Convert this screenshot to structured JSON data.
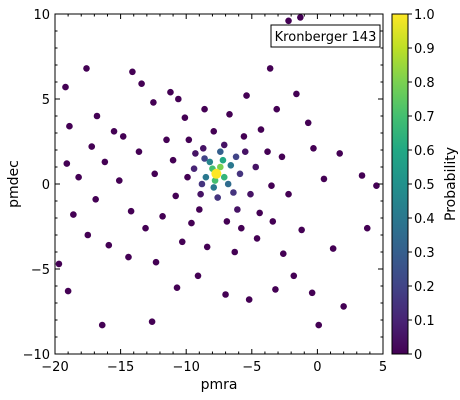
{
  "chart_data": {
    "type": "scatter",
    "title": "",
    "xlabel": "pmra",
    "ylabel": "pmdec",
    "xlim": [
      -20,
      5
    ],
    "ylim": [
      -10,
      10
    ],
    "xticks": [
      -20,
      -15,
      -10,
      -5,
      0,
      5
    ],
    "yticks": [
      -10,
      -5,
      0,
      5,
      10
    ],
    "xtick_labels": [
      "−20",
      "−15",
      "−10",
      "−5",
      "0",
      "5"
    ],
    "ytick_labels": [
      "−10",
      "−5",
      "0",
      "5",
      "10"
    ],
    "grid": false,
    "legend": {
      "label": "Kronberger 143",
      "placement": "top-right"
    },
    "colorbar": {
      "label": "Probability",
      "colormap": "viridis",
      "range": [
        0,
        1
      ],
      "ticks": [
        "0",
        "0.1",
        "0.2",
        "0.3",
        "0.4",
        "0.5",
        "0.6",
        "0.7",
        "0.8",
        "0.9",
        "1.0"
      ]
    },
    "cluster_center": {
      "x": -7.7,
      "y": 0.6,
      "probability": 1.0
    },
    "points": [
      {
        "x": -2.2,
        "y": 9.6,
        "p": 0.0
      },
      {
        "x": -1.3,
        "y": 9.8,
        "p": 0.0
      },
      {
        "x": -17.6,
        "y": 6.8,
        "p": 0.0
      },
      {
        "x": -14.1,
        "y": 6.6,
        "p": 0.0
      },
      {
        "x": -19.2,
        "y": 5.7,
        "p": 0.0
      },
      {
        "x": -13.4,
        "y": 5.9,
        "p": 0.0
      },
      {
        "x": -11.2,
        "y": 5.4,
        "p": 0.0
      },
      {
        "x": -12.5,
        "y": 4.8,
        "p": 0.0
      },
      {
        "x": -10.6,
        "y": 5.0,
        "p": 0.0
      },
      {
        "x": -16.8,
        "y": 4.0,
        "p": 0.0
      },
      {
        "x": -18.9,
        "y": 3.4,
        "p": 0.0
      },
      {
        "x": -15.5,
        "y": 3.1,
        "p": 0.0
      },
      {
        "x": -17.2,
        "y": 2.2,
        "p": 0.0
      },
      {
        "x": -19.1,
        "y": 1.2,
        "p": 0.0
      },
      {
        "x": -16.2,
        "y": 1.3,
        "p": 0.0
      },
      {
        "x": -14.8,
        "y": 2.8,
        "p": 0.0
      },
      {
        "x": -13.6,
        "y": 1.9,
        "p": 0.0
      },
      {
        "x": -18.2,
        "y": 0.4,
        "p": 0.0
      },
      {
        "x": -15.1,
        "y": 0.2,
        "p": 0.0
      },
      {
        "x": -16.9,
        "y": -0.9,
        "p": 0.0
      },
      {
        "x": -18.6,
        "y": -1.8,
        "p": 0.0
      },
      {
        "x": -17.5,
        "y": -3.0,
        "p": 0.0
      },
      {
        "x": -15.9,
        "y": -3.6,
        "p": 0.0
      },
      {
        "x": -14.2,
        "y": -1.6,
        "p": 0.0
      },
      {
        "x": -13.1,
        "y": -2.6,
        "p": 0.0
      },
      {
        "x": -14.4,
        "y": -4.3,
        "p": 0.0
      },
      {
        "x": -12.3,
        "y": -4.6,
        "p": 0.0
      },
      {
        "x": -19.7,
        "y": -4.7,
        "p": 0.0
      },
      {
        "x": -19.0,
        "y": -6.3,
        "p": 0.0
      },
      {
        "x": -16.4,
        "y": -8.3,
        "p": 0.0
      },
      {
        "x": -12.6,
        "y": -8.1,
        "p": 0.0
      },
      {
        "x": -10.7,
        "y": -6.1,
        "p": 0.0
      },
      {
        "x": -9.1,
        "y": -5.4,
        "p": 0.0
      },
      {
        "x": -7.0,
        "y": -6.5,
        "p": 0.0
      },
      {
        "x": -5.2,
        "y": -6.8,
        "p": 0.0
      },
      {
        "x": -3.2,
        "y": -6.2,
        "p": 0.0
      },
      {
        "x": -1.8,
        "y": -5.4,
        "p": 0.0
      },
      {
        "x": -0.4,
        "y": -6.4,
        "p": 0.0
      },
      {
        "x": 0.1,
        "y": -8.3,
        "p": 0.0
      },
      {
        "x": 2.0,
        "y": -7.2,
        "p": 0.0
      },
      {
        "x": 1.2,
        "y": -3.8,
        "p": 0.0
      },
      {
        "x": 3.8,
        "y": -2.6,
        "p": 0.0
      },
      {
        "x": 3.4,
        "y": 0.5,
        "p": 0.0
      },
      {
        "x": 4.5,
        "y": -0.1,
        "p": 0.0
      },
      {
        "x": 0.5,
        "y": 0.3,
        "p": 0.0
      },
      {
        "x": 1.7,
        "y": 1.8,
        "p": 0.0
      },
      {
        "x": -0.3,
        "y": 2.1,
        "p": 0.0
      },
      {
        "x": -0.7,
        "y": 3.6,
        "p": 0.0
      },
      {
        "x": -1.6,
        "y": 5.3,
        "p": 0.0
      },
      {
        "x": -3.6,
        "y": 6.8,
        "p": 0.0
      },
      {
        "x": -5.4,
        "y": 5.2,
        "p": 0.0
      },
      {
        "x": -3.1,
        "y": 4.4,
        "p": 0.0
      },
      {
        "x": -1.2,
        "y": -2.7,
        "p": 0.0
      },
      {
        "x": -2.6,
        "y": -4.1,
        "p": 0.0
      },
      {
        "x": -4.6,
        "y": -3.2,
        "p": 0.0
      },
      {
        "x": -6.3,
        "y": -4.0,
        "p": 0.0
      },
      {
        "x": -8.4,
        "y": -3.7,
        "p": 0.0
      },
      {
        "x": -10.3,
        "y": -3.4,
        "p": 0.0
      },
      {
        "x": -11.8,
        "y": -1.9,
        "p": 0.0
      },
      {
        "x": -12.4,
        "y": 0.6,
        "p": 0.0
      },
      {
        "x": -11.5,
        "y": 2.6,
        "p": 0.0
      },
      {
        "x": -10.1,
        "y": 3.9,
        "p": 0.0
      },
      {
        "x": -8.6,
        "y": 4.4,
        "p": 0.0
      },
      {
        "x": -6.7,
        "y": 4.1,
        "p": 0.0
      },
      {
        "x": -4.3,
        "y": 3.2,
        "p": 0.0
      },
      {
        "x": -2.7,
        "y": 1.6,
        "p": 0.0
      },
      {
        "x": -2.2,
        "y": -0.6,
        "p": 0.0
      },
      {
        "x": -3.4,
        "y": -2.2,
        "p": 0.0
      },
      {
        "x": -5.8,
        "y": -2.6,
        "p": 0.0
      },
      {
        "x": -9.6,
        "y": -2.3,
        "p": 0.0
      },
      {
        "x": -10.8,
        "y": -0.7,
        "p": 0.0
      },
      {
        "x": -11.0,
        "y": 1.4,
        "p": 0.0
      },
      {
        "x": -9.8,
        "y": 2.6,
        "p": 0.0
      },
      {
        "x": -7.9,
        "y": 3.1,
        "p": 0.0
      },
      {
        "x": -5.6,
        "y": 2.8,
        "p": 0.0
      },
      {
        "x": -3.8,
        "y": 1.9,
        "p": 0.0
      },
      {
        "x": -3.5,
        "y": -0.1,
        "p": 0.0
      },
      {
        "x": -4.4,
        "y": -1.7,
        "p": 0.0
      },
      {
        "x": -6.9,
        "y": -2.2,
        "p": 0.0
      },
      {
        "x": -9.0,
        "y": -1.5,
        "p": 0.0
      },
      {
        "x": -9.9,
        "y": 0.4,
        "p": 0.0
      },
      {
        "x": -9.3,
        "y": 1.8,
        "p": 0.05
      },
      {
        "x": -8.9,
        "y": -0.6,
        "p": 0.05
      },
      {
        "x": -6.1,
        "y": -1.5,
        "p": 0.05
      },
      {
        "x": -5.1,
        "y": -0.6,
        "p": 0.05
      },
      {
        "x": -4.7,
        "y": 1.0,
        "p": 0.05
      },
      {
        "x": -5.5,
        "y": 1.9,
        "p": 0.05
      },
      {
        "x": -7.1,
        "y": 2.3,
        "p": 0.05
      },
      {
        "x": -8.7,
        "y": 2.1,
        "p": 0.05
      },
      {
        "x": -9.4,
        "y": 0.9,
        "p": 0.1
      },
      {
        "x": -8.6,
        "y": 1.5,
        "p": 0.2
      },
      {
        "x": -8.8,
        "y": 0.0,
        "p": 0.15
      },
      {
        "x": -7.6,
        "y": -0.8,
        "p": 0.15
      },
      {
        "x": -6.4,
        "y": -0.5,
        "p": 0.15
      },
      {
        "x": -5.9,
        "y": 0.6,
        "p": 0.15
      },
      {
        "x": -6.2,
        "y": 1.6,
        "p": 0.2
      },
      {
        "x": -7.4,
        "y": 1.9,
        "p": 0.3
      },
      {
        "x": -8.2,
        "y": 1.3,
        "p": 0.45
      },
      {
        "x": -8.5,
        "y": 0.4,
        "p": 0.4
      },
      {
        "x": -7.9,
        "y": -0.2,
        "p": 0.4
      },
      {
        "x": -6.8,
        "y": 0.0,
        "p": 0.35
      },
      {
        "x": -6.6,
        "y": 1.1,
        "p": 0.4
      },
      {
        "x": -7.2,
        "y": 1.4,
        "p": 0.6
      },
      {
        "x": -8.0,
        "y": 0.9,
        "p": 0.7
      },
      {
        "x": -7.8,
        "y": 0.2,
        "p": 0.7
      },
      {
        "x": -7.1,
        "y": 0.4,
        "p": 0.65
      },
      {
        "x": -7.4,
        "y": 1.0,
        "p": 0.8
      },
      {
        "x": -7.7,
        "y": 0.6,
        "p": 0.95
      }
    ]
  }
}
